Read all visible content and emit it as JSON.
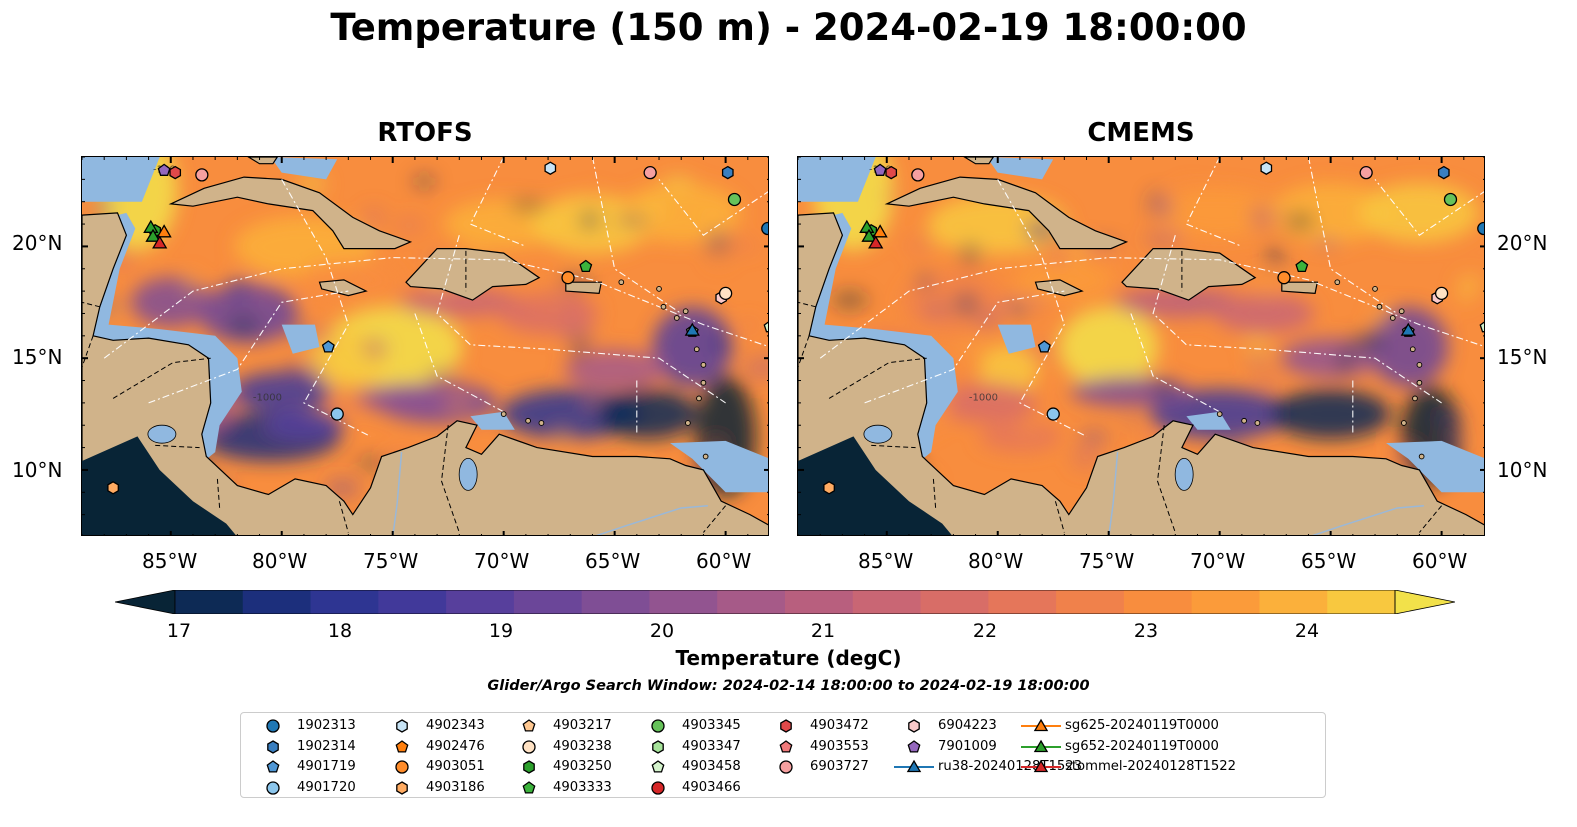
{
  "title": "Temperature (150 m) - 2024-02-19 18:00:00",
  "panels": [
    {
      "title": "RTOFS"
    },
    {
      "title": "CMEMS"
    }
  ],
  "lat_labels": [
    "20°N",
    "15°N",
    "10°N"
  ],
  "lon_labels": [
    "85°W",
    "80°W",
    "75°W",
    "70°W",
    "65°W",
    "60°W"
  ],
  "colorbar": {
    "label": "Temperature (degC)",
    "ticks": [
      "17",
      "18",
      "19",
      "20",
      "21",
      "22",
      "23",
      "24"
    ],
    "min": 16.75,
    "max": 24.5,
    "step": 0.5,
    "colors": [
      "#082436",
      "#0d2a55",
      "#1c2f7c",
      "#2e3592",
      "#41399a",
      "#573f9c",
      "#6b4699",
      "#7f4e95",
      "#925490",
      "#a65a88",
      "#b85f7e",
      "#c96674",
      "#d86d67",
      "#e5765a",
      "#f0814b",
      "#f88d3e",
      "#fb9b3a",
      "#fbb03b",
      "#f8c83f",
      "#f2e14a"
    ]
  },
  "search_window": "Glider/Argo Search Window: 2024-02-14 18:00:00 to 2024-02-19 18:00:00",
  "contour_labels": [
    "-100",
    "-1000"
  ],
  "legend": [
    {
      "label": "1902313",
      "marker": "circle",
      "color": "#1f77b4"
    },
    {
      "label": "1902314",
      "marker": "hexagon",
      "color": "#3a7fc0"
    },
    {
      "label": "4901719",
      "marker": "pentagon",
      "color": "#4f97d5"
    },
    {
      "label": "4901720",
      "marker": "circle",
      "color": "#8cc6ec"
    },
    {
      "label": "4902343",
      "marker": "hexagon",
      "color": "#c7e4f6"
    },
    {
      "label": "4902476",
      "marker": "pentagon",
      "color": "#ff7f0e"
    },
    {
      "label": "4903051",
      "marker": "circle",
      "color": "#ff8c2a"
    },
    {
      "label": "4903186",
      "marker": "hexagon",
      "color": "#ffab62"
    },
    {
      "label": "4903217",
      "marker": "pentagon",
      "color": "#ffc891"
    },
    {
      "label": "4903238",
      "marker": "circle",
      "color": "#ffe2c4"
    },
    {
      "label": "4903250",
      "marker": "hexagon",
      "color": "#2ca02c"
    },
    {
      "label": "4903333",
      "marker": "pentagon",
      "color": "#3cb33c"
    },
    {
      "label": "4903345",
      "marker": "circle",
      "color": "#66c25a"
    },
    {
      "label": "4903347",
      "marker": "hexagon",
      "color": "#a6e39a"
    },
    {
      "label": "4903458",
      "marker": "pentagon",
      "color": "#d4f3cc"
    },
    {
      "label": "4903466",
      "marker": "circle",
      "color": "#d62728"
    },
    {
      "label": "4903472",
      "marker": "hexagon",
      "color": "#e0494a"
    },
    {
      "label": "4903553",
      "marker": "pentagon",
      "color": "#f07a7b"
    },
    {
      "label": "6903727",
      "marker": "circle",
      "color": "#f6a0a0"
    },
    {
      "label": "6904223",
      "marker": "hexagon",
      "color": "#fbcaca"
    },
    {
      "label": "7901009",
      "marker": "pentagon",
      "color": "#9467bd"
    },
    {
      "label": "ru38-20240128T1523",
      "marker": "triangle-line",
      "color": "#1f77b4"
    },
    {
      "label": "sg625-20240119T0000",
      "marker": "triangle-line",
      "color": "#ff7f0e"
    },
    {
      "label": "sg652-20240119T0000",
      "marker": "triangle-line",
      "color": "#2ca02c"
    },
    {
      "label": "stommel-20240128T1522",
      "marker": "triangle-line",
      "color": "#d62728"
    }
  ],
  "map_extent": {
    "lon": [
      -89,
      -58
    ],
    "lat": [
      7,
      24
    ]
  },
  "floats": [
    {
      "lon": -85.7,
      "lat": 20.7,
      "id": "4903250"
    },
    {
      "lon": -85.3,
      "lat": 23.4,
      "id": "7901009"
    },
    {
      "lon": -84.8,
      "lat": 23.3,
      "id": "4903472"
    },
    {
      "lon": -83.6,
      "lat": 23.2,
      "id": "6903727"
    },
    {
      "lon": -67.9,
      "lat": 23.5,
      "id": "4902343"
    },
    {
      "lon": -63.4,
      "lat": 23.3,
      "id": "6903727"
    },
    {
      "lon": -59.9,
      "lat": 23.3,
      "id": "1902314"
    },
    {
      "lon": -59.6,
      "lat": 22.1,
      "id": "4903345"
    },
    {
      "lon": -58.1,
      "lat": 20.8,
      "id": "1902313"
    },
    {
      "lon": -67.1,
      "lat": 18.6,
      "id": "4903051"
    },
    {
      "lon": -66.3,
      "lat": 19.1,
      "id": "4903333"
    },
    {
      "lon": -60.2,
      "lat": 17.7,
      "id": "6904223"
    },
    {
      "lon": -60.0,
      "lat": 17.9,
      "id": "4903238"
    },
    {
      "lon": -61.5,
      "lat": 16.2,
      "id": "4903458"
    },
    {
      "lon": -58.0,
      "lat": 16.4,
      "id": "4903458"
    },
    {
      "lon": -77.9,
      "lat": 15.5,
      "id": "4901719"
    },
    {
      "lon": -77.5,
      "lat": 12.5,
      "id": "4901720"
    },
    {
      "lon": -87.6,
      "lat": 9.2,
      "id": "4903186"
    }
  ],
  "gliders": [
    {
      "lon": -85.9,
      "lat": 20.8,
      "id": "sg652-20240119T0000",
      "color": "#2ca02c"
    },
    {
      "lon": -85.3,
      "lat": 20.6,
      "id": "sg625-20240119T0000",
      "color": "#ff7f0e"
    },
    {
      "lon": -85.8,
      "lat": 20.4,
      "id": "sg652-20240119T0000",
      "color": "#2ca02c"
    },
    {
      "lon": -85.5,
      "lat": 20.1,
      "id": "stommel-20240128T1522",
      "color": "#d62728"
    },
    {
      "lon": -61.5,
      "lat": 16.2,
      "id": "ru38-20240128T1523",
      "color": "#1f77b4"
    }
  ]
}
